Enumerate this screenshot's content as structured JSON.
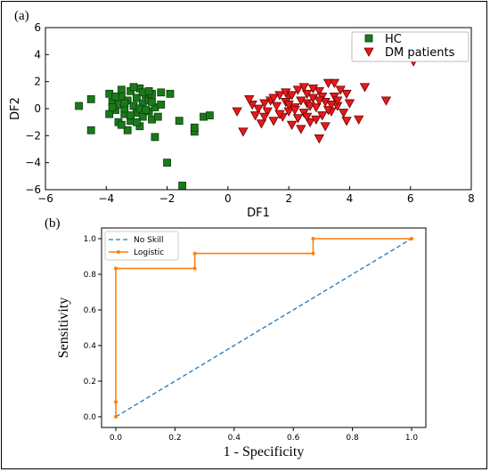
{
  "chart_data": [
    {
      "panel_label": "(a)",
      "type": "scatter",
      "xlabel": "DF1",
      "ylabel": "DF2",
      "xlim": [
        -6,
        8
      ],
      "ylim": [
        -6,
        6
      ],
      "xticks": [
        -6,
        -4,
        -2,
        0,
        2,
        4,
        6,
        8
      ],
      "yticks": [
        -6,
        -4,
        -2,
        0,
        2,
        4,
        6
      ],
      "legend_position": "top-right",
      "series": [
        {
          "name": "HC",
          "marker": "square",
          "color": "#1a7a1a",
          "points": [
            [
              -4.9,
              0.2
            ],
            [
              -4.5,
              0.7
            ],
            [
              -4.5,
              -1.6
            ],
            [
              -3.9,
              1.1
            ],
            [
              -3.8,
              0.5
            ],
            [
              -3.7,
              -0.1
            ],
            [
              -3.6,
              0.3
            ],
            [
              -3.5,
              1.4
            ],
            [
              -3.5,
              0.9
            ],
            [
              -3.4,
              -0.4
            ],
            [
              -3.4,
              0.0
            ],
            [
              -3.3,
              0.6
            ],
            [
              -3.2,
              -0.9
            ],
            [
              -3.2,
              1.3
            ],
            [
              -3.1,
              0.2
            ],
            [
              -3.0,
              -0.3
            ],
            [
              -3.0,
              0.8
            ],
            [
              -2.9,
              1.5
            ],
            [
              -2.9,
              -1.3
            ],
            [
              -2.8,
              -0.6
            ],
            [
              -2.8,
              0.4
            ],
            [
              -2.7,
              1.0
            ],
            [
              -2.6,
              -0.2
            ],
            [
              -2.6,
              0.6
            ],
            [
              -2.5,
              1.1
            ],
            [
              -2.5,
              -0.8
            ],
            [
              -2.4,
              0.1
            ],
            [
              -2.4,
              -2.1
            ],
            [
              -3.6,
              -1.0
            ],
            [
              -3.3,
              -1.6
            ],
            [
              -3.1,
              1.6
            ],
            [
              -2.8,
              1.2
            ],
            [
              -3.9,
              -0.4
            ],
            [
              -3.7,
              0.9
            ],
            [
              -2.2,
              0.3
            ],
            [
              -2.2,
              1.2
            ],
            [
              -2.3,
              -0.6
            ],
            [
              -1.9,
              1.1
            ],
            [
              -2.0,
              -4.0
            ],
            [
              -1.5,
              -5.7
            ],
            [
              -1.6,
              -0.9
            ],
            [
              -1.1,
              -1.7
            ],
            [
              -1.1,
              -1.4
            ],
            [
              -0.8,
              -0.6
            ],
            [
              -0.6,
              -0.5
            ],
            [
              -3.5,
              -1.2
            ],
            [
              -2.9,
              0.0
            ],
            [
              -3.8,
              0.1
            ],
            [
              -3.2,
              -0.5
            ],
            [
              -2.7,
              -0.1
            ],
            [
              -3.0,
              -1.0
            ],
            [
              -2.5,
              0.5
            ],
            [
              -3.4,
              0.4
            ],
            [
              -2.6,
              1.3
            ]
          ]
        },
        {
          "name": "DM patients",
          "marker": "triangle_down",
          "color": "#e31a1c",
          "points": [
            [
              6.1,
              3.5
            ],
            [
              5.2,
              0.6
            ],
            [
              4.5,
              1.6
            ],
            [
              4.3,
              -0.8
            ],
            [
              3.9,
              1.1
            ],
            [
              3.9,
              -0.9
            ],
            [
              3.6,
              0.2
            ],
            [
              3.5,
              0.9
            ],
            [
              3.4,
              -0.2
            ],
            [
              3.3,
              1.9
            ],
            [
              3.2,
              0.5
            ],
            [
              3.1,
              -0.5
            ],
            [
              3.0,
              1.3
            ],
            [
              3.0,
              -2.2
            ],
            [
              2.9,
              0.1
            ],
            [
              2.8,
              0.8
            ],
            [
              2.7,
              -1.0
            ],
            [
              2.6,
              0.4
            ],
            [
              2.6,
              1.1
            ],
            [
              2.5,
              -0.3
            ],
            [
              2.4,
              0.6
            ],
            [
              2.3,
              -0.7
            ],
            [
              2.3,
              1.4
            ],
            [
              2.2,
              0.1
            ],
            [
              2.1,
              -1.2
            ],
            [
              2.0,
              0.9
            ],
            [
              2.0,
              -0.2
            ],
            [
              1.9,
              0.5
            ],
            [
              1.8,
              -0.6
            ],
            [
              1.7,
              1.0
            ],
            [
              1.6,
              0.2
            ],
            [
              1.5,
              -0.9
            ],
            [
              1.4,
              0.6
            ],
            [
              1.3,
              -0.2
            ],
            [
              1.2,
              0.4
            ],
            [
              1.1,
              -1.1
            ],
            [
              1.0,
              0.0
            ],
            [
              0.9,
              -0.5
            ],
            [
              0.8,
              0.3
            ],
            [
              0.5,
              -1.7
            ],
            [
              0.3,
              -0.2
            ],
            [
              3.6,
              0.6
            ],
            [
              3.3,
              -0.1
            ],
            [
              2.9,
              -0.8
            ],
            [
              2.7,
              0.2
            ],
            [
              2.5,
              1.6
            ],
            [
              2.2,
              -0.1
            ],
            [
              2.0,
              0.3
            ],
            [
              1.7,
              -0.4
            ],
            [
              3.1,
              0.9
            ],
            [
              3.4,
              0.3
            ],
            [
              3.8,
              -0.3
            ],
            [
              4.0,
              0.4
            ],
            [
              2.4,
              -1.5
            ],
            [
              1.2,
              -0.6
            ],
            [
              2.8,
              1.5
            ],
            [
              3.7,
              1.4
            ],
            [
              1.9,
              1.2
            ],
            [
              2.6,
              -0.6
            ],
            [
              3.2,
              -1.3
            ],
            [
              0.7,
              0.7
            ],
            [
              1.5,
              0.8
            ],
            [
              2.1,
              1.0
            ],
            [
              3.5,
              1.9
            ],
            [
              3.0,
              0.6
            ]
          ]
        }
      ]
    },
    {
      "panel_label": "(b)",
      "type": "line",
      "xlabel": "1 - Specificity",
      "ylabel": "Sensitivity",
      "xlim": [
        0,
        1
      ],
      "ylim": [
        0,
        1
      ],
      "xticks": [
        "0.0",
        "0.2",
        "0.4",
        "0.6",
        "0.8",
        "1.0"
      ],
      "yticks": [
        "0.0",
        "0.2",
        "0.4",
        "0.6",
        "0.8",
        "1.0"
      ],
      "legend_position": "top-left",
      "series": [
        {
          "name": "No Skill",
          "style": "dashed",
          "color": "#1f77b4",
          "x": [
            0.0,
            1.0
          ],
          "y": [
            0.0,
            1.0
          ]
        },
        {
          "name": "Logistic",
          "style": "solid-markers",
          "color": "#ff7f0e",
          "x": [
            0.0,
            0.0,
            0.0,
            0.267,
            0.267,
            0.667,
            0.667,
            1.0
          ],
          "y": [
            0.0,
            0.083,
            0.833,
            0.833,
            0.917,
            0.917,
            1.0,
            1.0
          ]
        }
      ]
    }
  ]
}
